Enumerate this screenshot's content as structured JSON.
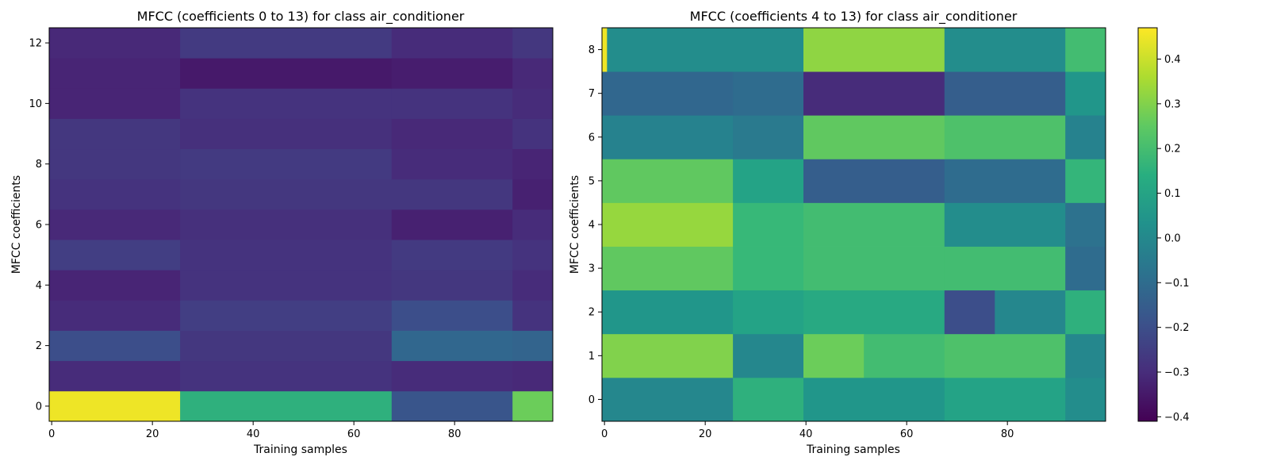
{
  "figure": {
    "colors": {
      "background": "#ffffff",
      "frame": "#000000",
      "colormap": "viridis"
    }
  },
  "chart_data": [
    {
      "type": "heatmap",
      "title": "MFCC (coefficients 0 to 13) for class air_conditioner",
      "xlabel": "Training samples",
      "ylabel": "MFCC coefficients",
      "xlim": [
        -0.5,
        99.5
      ],
      "ylim": [
        -0.5,
        12.5
      ],
      "xticks": [
        0,
        20,
        40,
        60,
        80
      ],
      "yticks": [
        0,
        2,
        4,
        6,
        8,
        10,
        12
      ],
      "rows": [
        {
          "coef": 0,
          "segments": [
            {
              "from": 0,
              "to": 26,
              "value": 0.45
            },
            {
              "from": 26,
              "to": 68,
              "value": 0.15
            },
            {
              "from": 68,
              "to": 92,
              "value": -0.18
            },
            {
              "from": 92,
              "to": 100,
              "value": 0.27
            }
          ]
        },
        {
          "coef": 1,
          "segments": [
            {
              "from": 0,
              "to": 26,
              "value": -0.3
            },
            {
              "from": 26,
              "to": 68,
              "value": -0.28
            },
            {
              "from": 68,
              "to": 92,
              "value": -0.3
            },
            {
              "from": 92,
              "to": 100,
              "value": -0.31
            }
          ]
        },
        {
          "coef": 2,
          "segments": [
            {
              "from": 0,
              "to": 26,
              "value": -0.2
            },
            {
              "from": 26,
              "to": 68,
              "value": -0.27
            },
            {
              "from": 68,
              "to": 92,
              "value": -0.12
            },
            {
              "from": 92,
              "to": 100,
              "value": -0.13
            }
          ]
        },
        {
          "coef": 3,
          "segments": [
            {
              "from": 0,
              "to": 26,
              "value": -0.3
            },
            {
              "from": 26,
              "to": 68,
              "value": -0.25
            },
            {
              "from": 68,
              "to": 92,
              "value": -0.2
            },
            {
              "from": 92,
              "to": 100,
              "value": -0.28
            }
          ]
        },
        {
          "coef": 4,
          "segments": [
            {
              "from": 0,
              "to": 26,
              "value": -0.32
            },
            {
              "from": 26,
              "to": 68,
              "value": -0.28
            },
            {
              "from": 68,
              "to": 92,
              "value": -0.27
            },
            {
              "from": 92,
              "to": 100,
              "value": -0.3
            }
          ]
        },
        {
          "coef": 5,
          "segments": [
            {
              "from": 0,
              "to": 26,
              "value": -0.25
            },
            {
              "from": 26,
              "to": 68,
              "value": -0.28
            },
            {
              "from": 68,
              "to": 92,
              "value": -0.26
            },
            {
              "from": 92,
              "to": 100,
              "value": -0.28
            }
          ]
        },
        {
          "coef": 6,
          "segments": [
            {
              "from": 0,
              "to": 26,
              "value": -0.31
            },
            {
              "from": 26,
              "to": 68,
              "value": -0.29
            },
            {
              "from": 68,
              "to": 92,
              "value": -0.33
            },
            {
              "from": 92,
              "to": 100,
              "value": -0.3
            }
          ]
        },
        {
          "coef": 7,
          "segments": [
            {
              "from": 0,
              "to": 26,
              "value": -0.28
            },
            {
              "from": 26,
              "to": 68,
              "value": -0.27
            },
            {
              "from": 68,
              "to": 92,
              "value": -0.27
            },
            {
              "from": 92,
              "to": 100,
              "value": -0.33
            }
          ]
        },
        {
          "coef": 8,
          "segments": [
            {
              "from": 0,
              "to": 26,
              "value": -0.27
            },
            {
              "from": 26,
              "to": 68,
              "value": -0.26
            },
            {
              "from": 68,
              "to": 92,
              "value": -0.3
            },
            {
              "from": 92,
              "to": 100,
              "value": -0.32
            }
          ]
        },
        {
          "coef": 9,
          "segments": [
            {
              "from": 0,
              "to": 26,
              "value": -0.27
            },
            {
              "from": 26,
              "to": 68,
              "value": -0.29
            },
            {
              "from": 68,
              "to": 92,
              "value": -0.31
            },
            {
              "from": 92,
              "to": 100,
              "value": -0.28
            }
          ]
        },
        {
          "coef": 10,
          "segments": [
            {
              "from": 0,
              "to": 26,
              "value": -0.32
            },
            {
              "from": 26,
              "to": 68,
              "value": -0.28
            },
            {
              "from": 68,
              "to": 92,
              "value": -0.28
            },
            {
              "from": 92,
              "to": 100,
              "value": -0.3
            }
          ]
        },
        {
          "coef": 11,
          "segments": [
            {
              "from": 0,
              "to": 26,
              "value": -0.32
            },
            {
              "from": 26,
              "to": 68,
              "value": -0.35
            },
            {
              "from": 68,
              "to": 92,
              "value": -0.34
            },
            {
              "from": 92,
              "to": 100,
              "value": -0.31
            }
          ]
        },
        {
          "coef": 12,
          "segments": [
            {
              "from": 0,
              "to": 26,
              "value": -0.31
            },
            {
              "from": 26,
              "to": 68,
              "value": -0.26
            },
            {
              "from": 68,
              "to": 92,
              "value": -0.3
            },
            {
              "from": 92,
              "to": 100,
              "value": -0.27
            }
          ]
        }
      ]
    },
    {
      "type": "heatmap",
      "title": "MFCC (coefficients 4 to 13) for class air_conditioner",
      "xlabel": "Training samples",
      "ylabel": "MFCC coefficients",
      "xlim": [
        -0.5,
        99.5
      ],
      "ylim": [
        -0.5,
        8.5
      ],
      "xticks": [
        0,
        20,
        40,
        60,
        80
      ],
      "yticks": [
        0,
        1,
        2,
        3,
        4,
        5,
        6,
        7,
        8
      ],
      "colorbar": {
        "range": [
          -0.41,
          0.47
        ],
        "ticks": [
          -0.4,
          -0.3,
          -0.2,
          -0.1,
          0.0,
          0.1,
          0.2,
          0.3,
          0.4
        ],
        "tick_labels": [
          "−0.4",
          "−0.3",
          "−0.2",
          "−0.1",
          "0.0",
          "0.1",
          "0.2",
          "0.3",
          "0.4"
        ]
      },
      "rows": [
        {
          "coef": 0,
          "segments": [
            {
              "from": 0,
              "to": 26,
              "value": 0.0
            },
            {
              "from": 26,
              "to": 40,
              "value": 0.15
            },
            {
              "from": 40,
              "to": 68,
              "value": 0.05
            },
            {
              "from": 68,
              "to": 92,
              "value": 0.1
            },
            {
              "from": 92,
              "to": 100,
              "value": 0.02
            }
          ]
        },
        {
          "coef": 1,
          "segments": [
            {
              "from": 0,
              "to": 26,
              "value": 0.3
            },
            {
              "from": 26,
              "to": 40,
              "value": 0.0
            },
            {
              "from": 40,
              "to": 52,
              "value": 0.27
            },
            {
              "from": 52,
              "to": 68,
              "value": 0.2
            },
            {
              "from": 68,
              "to": 92,
              "value": 0.22
            },
            {
              "from": 92,
              "to": 100,
              "value": 0.0
            }
          ]
        },
        {
          "coef": 2,
          "segments": [
            {
              "from": 0,
              "to": 26,
              "value": 0.05
            },
            {
              "from": 26,
              "to": 40,
              "value": 0.1
            },
            {
              "from": 40,
              "to": 68,
              "value": 0.12
            },
            {
              "from": 68,
              "to": 78,
              "value": -0.2
            },
            {
              "from": 78,
              "to": 92,
              "value": 0.0
            },
            {
              "from": 92,
              "to": 100,
              "value": 0.15
            }
          ]
        },
        {
          "coef": 3,
          "segments": [
            {
              "from": 0,
              "to": 26,
              "value": 0.25
            },
            {
              "from": 26,
              "to": 40,
              "value": 0.18
            },
            {
              "from": 40,
              "to": 68,
              "value": 0.2
            },
            {
              "from": 68,
              "to": 92,
              "value": 0.2
            },
            {
              "from": 92,
              "to": 100,
              "value": -0.1
            }
          ]
        },
        {
          "coef": 4,
          "segments": [
            {
              "from": 0,
              "to": 26,
              "value": 0.33
            },
            {
              "from": 26,
              "to": 40,
              "value": 0.18
            },
            {
              "from": 40,
              "to": 68,
              "value": 0.2
            },
            {
              "from": 68,
              "to": 92,
              "value": 0.02
            },
            {
              "from": 92,
              "to": 100,
              "value": -0.08
            }
          ]
        },
        {
          "coef": 5,
          "segments": [
            {
              "from": 0,
              "to": 26,
              "value": 0.25
            },
            {
              "from": 26,
              "to": 40,
              "value": 0.1
            },
            {
              "from": 40,
              "to": 68,
              "value": -0.15
            },
            {
              "from": 68,
              "to": 92,
              "value": -0.1
            },
            {
              "from": 92,
              "to": 100,
              "value": 0.17
            }
          ]
        },
        {
          "coef": 6,
          "segments": [
            {
              "from": 0,
              "to": 26,
              "value": -0.02
            },
            {
              "from": 26,
              "to": 40,
              "value": -0.05
            },
            {
              "from": 40,
              "to": 68,
              "value": 0.25
            },
            {
              "from": 68,
              "to": 92,
              "value": 0.22
            },
            {
              "from": 92,
              "to": 100,
              "value": -0.02
            }
          ]
        },
        {
          "coef": 7,
          "segments": [
            {
              "from": 0,
              "to": 26,
              "value": -0.12
            },
            {
              "from": 26,
              "to": 40,
              "value": -0.1
            },
            {
              "from": 40,
              "to": 68,
              "value": -0.3
            },
            {
              "from": 68,
              "to": 92,
              "value": -0.15
            },
            {
              "from": 92,
              "to": 100,
              "value": 0.05
            }
          ]
        },
        {
          "coef": 8,
          "segments": [
            {
              "from": 0,
              "to": 1,
              "value": 0.45
            },
            {
              "from": 1,
              "to": 40,
              "value": 0.02
            },
            {
              "from": 40,
              "to": 68,
              "value": 0.32
            },
            {
              "from": 68,
              "to": 92,
              "value": 0.02
            },
            {
              "from": 92,
              "to": 100,
              "value": 0.2
            }
          ]
        }
      ]
    }
  ]
}
